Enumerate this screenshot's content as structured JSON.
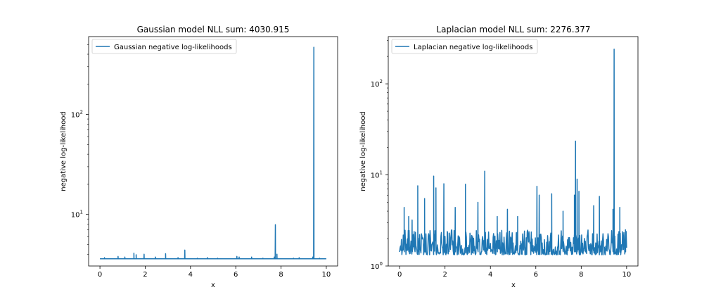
{
  "chart_data": [
    {
      "type": "line",
      "title": "Gaussian model NLL sum: 4030.915",
      "xlabel": "x",
      "ylabel": "negative log-likelihood",
      "xlim": [
        -0.5,
        10.5
      ],
      "ylim": [
        3.05,
        600
      ],
      "yscale": "log",
      "xticks": [
        "0",
        "2",
        "4",
        "6",
        "8",
        "10"
      ],
      "yticks": [
        {
          "value": 10,
          "base": "10",
          "exp": "1"
        },
        {
          "value": 100,
          "base": "10",
          "exp": "2"
        }
      ],
      "legend": {
        "position": "upper-left",
        "entries": [
          "Gaussian negative log-likelihoods"
        ]
      },
      "color": "#1f77b4",
      "series": [
        {
          "name": "Gaussian negative log-likelihoods",
          "baseline": 3.6,
          "x_range": [
            0,
            10
          ],
          "spikes": [
            [
              0.2,
              3.7
            ],
            [
              0.8,
              3.8
            ],
            [
              1.1,
              3.75
            ],
            [
              1.5,
              4.1
            ],
            [
              1.6,
              3.95
            ],
            [
              1.95,
              4.0
            ],
            [
              2.45,
              3.75
            ],
            [
              2.9,
              4.05
            ],
            [
              3.45,
              3.7
            ],
            [
              3.75,
              4.4
            ],
            [
              4.3,
              3.65
            ],
            [
              4.75,
              3.7
            ],
            [
              5.2,
              3.65
            ],
            [
              6.05,
              3.8
            ],
            [
              6.15,
              3.75
            ],
            [
              6.7,
              3.75
            ],
            [
              7.2,
              3.65
            ],
            [
              7.7,
              3.75
            ],
            [
              7.75,
              7.9
            ],
            [
              7.82,
              4.0
            ],
            [
              8.55,
              3.65
            ],
            [
              8.8,
              3.7
            ],
            [
              9.4,
              3.75
            ],
            [
              9.45,
              470
            ],
            [
              9.7,
              3.65
            ]
          ]
        }
      ]
    },
    {
      "type": "line",
      "title": "Laplacian model NLL sum: 2276.377",
      "xlabel": "x",
      "ylabel": "negative log-likelihood",
      "xlim": [
        -0.5,
        10.5
      ],
      "ylim": [
        1.0,
        330
      ],
      "yscale": "log",
      "xticks": [
        "0",
        "2",
        "4",
        "6",
        "8",
        "10"
      ],
      "yticks": [
        {
          "value": 1,
          "base": "10",
          "exp": "0"
        },
        {
          "value": 10,
          "base": "10",
          "exp": "1"
        },
        {
          "value": 100,
          "base": "10",
          "exp": "2"
        }
      ],
      "legend": {
        "position": "upper-left",
        "entries": [
          "Laplacian negative log-likelihoods"
        ]
      },
      "color": "#1f77b4",
      "series": [
        {
          "name": "Laplacian negative log-likelihoods",
          "baseline_range": [
            1.33,
            2.5
          ],
          "x_range": [
            0,
            10
          ],
          "spikes": [
            [
              0.2,
              4.4
            ],
            [
              0.4,
              3.5
            ],
            [
              0.55,
              3.2
            ],
            [
              0.8,
              7.6
            ],
            [
              1.1,
              5.5
            ],
            [
              1.5,
              9.7
            ],
            [
              1.6,
              7.2
            ],
            [
              1.95,
              8.0
            ],
            [
              2.45,
              4.4
            ],
            [
              2.9,
              7.9
            ],
            [
              3.45,
              5.0
            ],
            [
              3.75,
              11.0
            ],
            [
              4.3,
              3.5
            ],
            [
              4.75,
              4.2
            ],
            [
              5.2,
              3.5
            ],
            [
              6.05,
              7.5
            ],
            [
              6.15,
              6.0
            ],
            [
              6.7,
              6.2
            ],
            [
              7.2,
              4.0
            ],
            [
              7.7,
              6.0
            ],
            [
              7.75,
              23.5
            ],
            [
              7.82,
              9.0
            ],
            [
              7.9,
              6.6
            ],
            [
              8.55,
              4.6
            ],
            [
              8.8,
              5.8
            ],
            [
              9.4,
              4.2
            ],
            [
              9.45,
              240
            ],
            [
              9.7,
              4.4
            ],
            [
              9.95,
              2.5
            ]
          ]
        }
      ]
    }
  ]
}
